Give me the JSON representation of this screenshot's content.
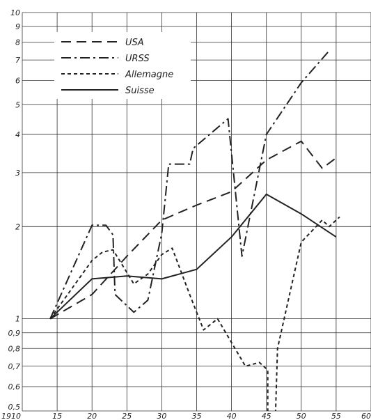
{
  "chart_data": {
    "type": "line",
    "title": "",
    "xlabel": "",
    "ylabel": "",
    "y_scale": "log",
    "xlim": [
      1910,
      1960
    ],
    "ylim": [
      0.5,
      10
    ],
    "grid": true,
    "legend_position": "top-left",
    "x_ticks": [
      {
        "value": 1910,
        "label": "1910"
      },
      {
        "value": 1915,
        "label": "15"
      },
      {
        "value": 1920,
        "label": "20"
      },
      {
        "value": 1925,
        "label": "25"
      },
      {
        "value": 1930,
        "label": "30"
      },
      {
        "value": 1935,
        "label": "35"
      },
      {
        "value": 1940,
        "label": "40"
      },
      {
        "value": 1945,
        "label": "45"
      },
      {
        "value": 1950,
        "label": "50"
      },
      {
        "value": 1955,
        "label": "55"
      },
      {
        "value": 1960,
        "label": "60"
      }
    ],
    "y_ticks": [
      {
        "value": 10,
        "label": "10"
      },
      {
        "value": 9,
        "label": "9"
      },
      {
        "value": 8,
        "label": "8"
      },
      {
        "value": 7,
        "label": "7"
      },
      {
        "value": 6,
        "label": "6"
      },
      {
        "value": 5,
        "label": "5"
      },
      {
        "value": 4,
        "label": "4"
      },
      {
        "value": 3,
        "label": "3"
      },
      {
        "value": 2,
        "label": "2"
      },
      {
        "value": 1,
        "label": "1"
      },
      {
        "value": 0.9,
        "label": "0,9"
      },
      {
        "value": 0.8,
        "label": "0,8"
      },
      {
        "value": 0.7,
        "label": "0,7"
      },
      {
        "value": 0.6,
        "label": "0,6"
      },
      {
        "value": 0.5,
        "label": "0,5"
      }
    ],
    "series": [
      {
        "name": "USA",
        "dash": "dash",
        "points": [
          [
            1914,
            1.0
          ],
          [
            1920,
            1.2
          ],
          [
            1925,
            1.6
          ],
          [
            1930,
            2.1
          ],
          [
            1935,
            2.35
          ],
          [
            1940,
            2.6
          ],
          [
            1945,
            3.3
          ],
          [
            1950,
            3.8
          ],
          [
            1953,
            3.1
          ],
          [
            1955,
            3.35
          ]
        ]
      },
      {
        "name": "URSS",
        "dash": "dashdot",
        "points": [
          [
            1914,
            1.0
          ],
          [
            1920,
            2.02
          ],
          [
            1922,
            2.02
          ],
          [
            1923,
            1.88
          ],
          [
            1923.3,
            1.2
          ],
          [
            1926,
            1.05
          ],
          [
            1928,
            1.15
          ],
          [
            1930,
            1.9
          ],
          [
            1931,
            3.2
          ],
          [
            1934,
            3.2
          ],
          [
            1934.5,
            3.6
          ],
          [
            1939.5,
            4.5
          ],
          [
            1941.5,
            1.6
          ],
          [
            1945,
            4.0
          ],
          [
            1950,
            5.9
          ],
          [
            1954,
            7.5
          ]
        ]
      },
      {
        "name": "Allemagne",
        "dash": "short",
        "points": [
          [
            1914,
            1.0
          ],
          [
            1920,
            1.55
          ],
          [
            1921.5,
            1.65
          ],
          [
            1923,
            1.68
          ],
          [
            1926,
            1.3
          ],
          [
            1928,
            1.4
          ],
          [
            1930,
            1.62
          ],
          [
            1931.5,
            1.7
          ],
          [
            1934,
            1.2
          ],
          [
            1936,
            0.92
          ],
          [
            1938,
            1.0
          ],
          [
            1942,
            0.7
          ],
          [
            1944,
            0.72
          ],
          [
            1945.2,
            0.68
          ],
          [
            1945.2,
            0.48
          ],
          [
            1946.3,
            0.48
          ],
          [
            1946.6,
            0.8
          ],
          [
            1950,
            1.78
          ],
          [
            1953,
            2.1
          ],
          [
            1954,
            2.0
          ],
          [
            1955.5,
            2.15
          ]
        ]
      },
      {
        "name": "Suisse",
        "dash": "solid",
        "points": [
          [
            1914,
            1.0
          ],
          [
            1920,
            1.35
          ],
          [
            1925,
            1.38
          ],
          [
            1930,
            1.35
          ],
          [
            1935,
            1.45
          ],
          [
            1940,
            1.85
          ],
          [
            1945,
            2.55
          ],
          [
            1950,
            2.2
          ],
          [
            1955,
            1.85
          ]
        ]
      }
    ]
  }
}
